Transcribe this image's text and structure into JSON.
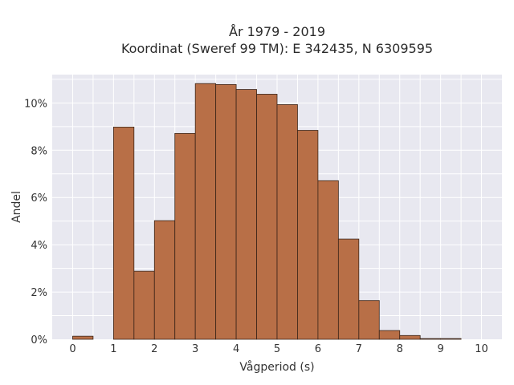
{
  "chart_data": {
    "type": "bar",
    "title_line1": "År 1979 - 2019",
    "title_line2": "Koordinat (Sweref 99 TM): E 342435, N 6309595",
    "xlabel": "Vågperiod (s)",
    "ylabel": "Andel",
    "bin_width": 0.5,
    "bins_start": [
      0,
      0.5,
      1,
      1.5,
      2,
      2.5,
      3,
      3.5,
      4,
      4.5,
      5,
      5.5,
      6,
      6.5,
      7,
      7.5,
      8,
      8.5,
      9,
      9.5
    ],
    "values": [
      0.13,
      0,
      8.98,
      2.88,
      5.02,
      8.71,
      10.82,
      10.78,
      10.57,
      10.37,
      9.93,
      8.84,
      6.71,
      4.24,
      1.64,
      0.37,
      0.16,
      0.03,
      0.03,
      0
    ],
    "x_ticks": [
      "0",
      "1",
      "2",
      "3",
      "4",
      "5",
      "6",
      "7",
      "8",
      "9",
      "10"
    ],
    "y_ticks": [
      "0%",
      "2%",
      "4%",
      "6%",
      "8%",
      "10%"
    ],
    "xlim": [
      -0.5,
      10.5
    ],
    "ylim": [
      0,
      11.2
    ],
    "grid": true,
    "bar_color": "#b86f47",
    "bar_edge_color": "#3a2418",
    "plot_bg": "#e8e8f0"
  }
}
